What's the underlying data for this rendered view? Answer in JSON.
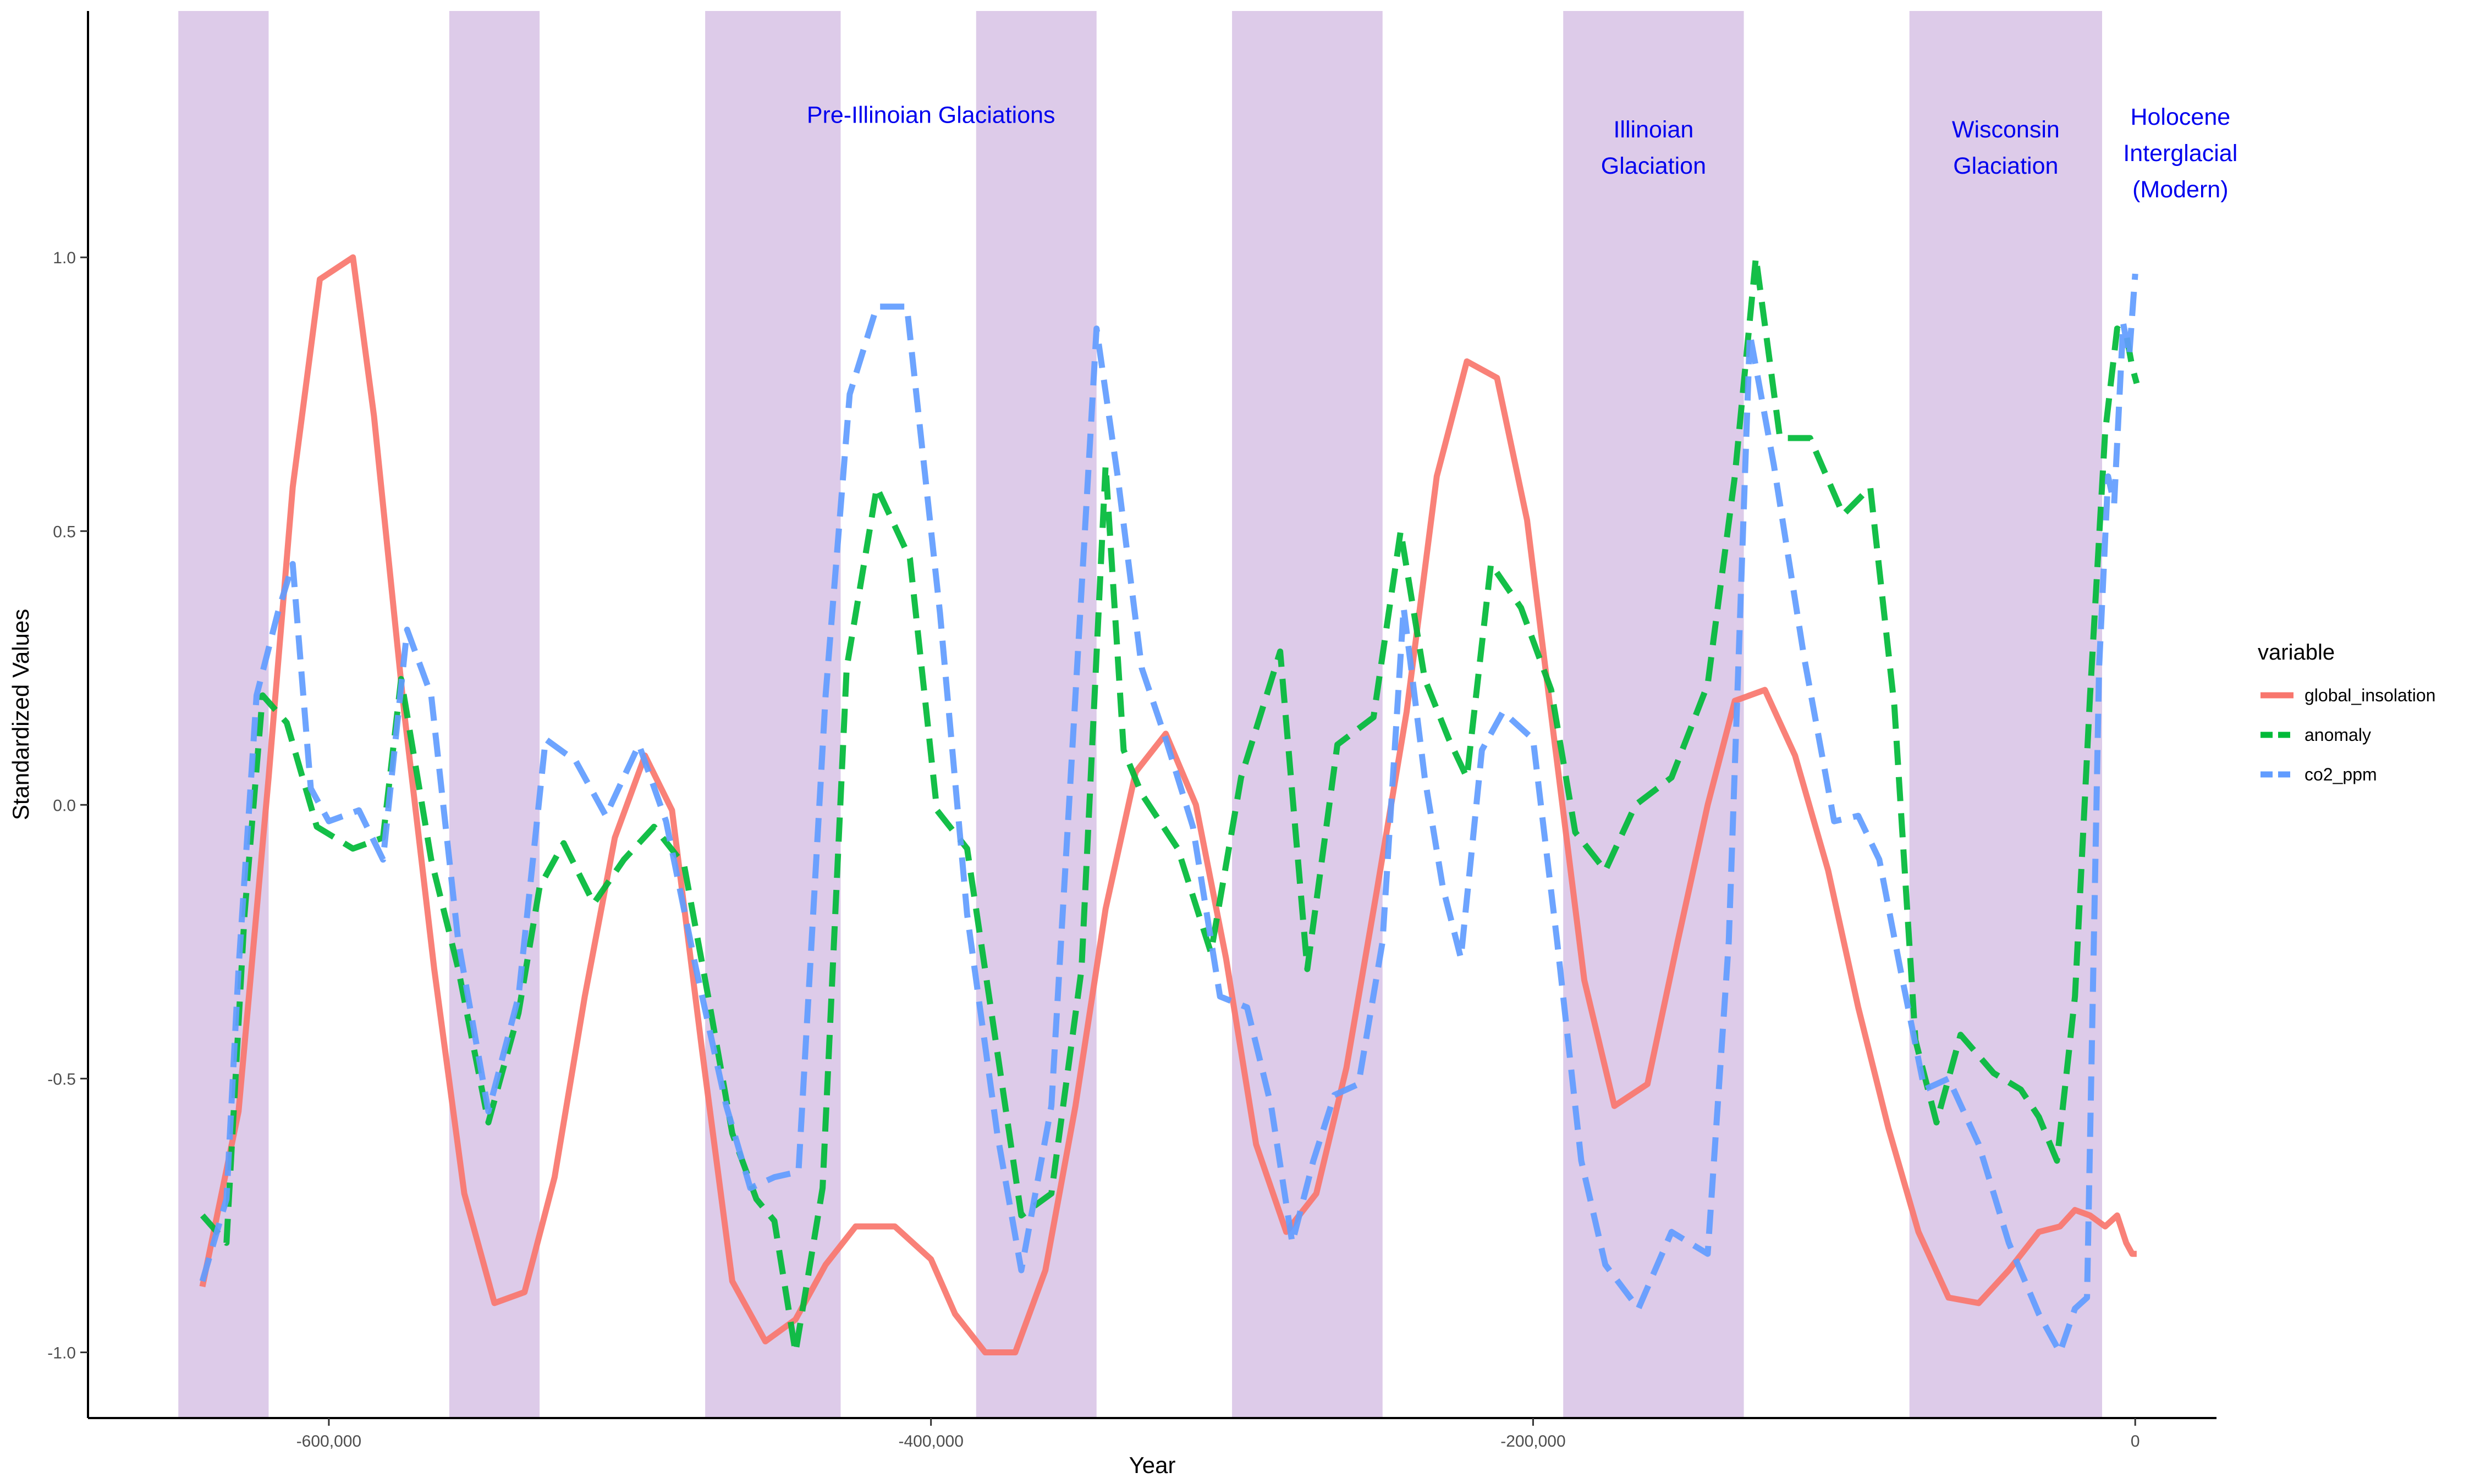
{
  "chart_data": {
    "type": "line",
    "xlabel": "Year",
    "ylabel": "Standardized Values",
    "xlim": [
      -680000,
      27000
    ],
    "ylim": [
      -1.12,
      1.45
    ],
    "x_ticks": [
      -600000,
      -400000,
      -200000,
      0
    ],
    "x_tick_labels": [
      "-600,000",
      "-400,000",
      "-200,000",
      "0"
    ],
    "y_ticks": [
      -1.0,
      -0.5,
      0.0,
      0.5,
      1.0
    ],
    "y_tick_labels": [
      "-1.0",
      "-0.5",
      "0.0",
      "0.5",
      "1.0"
    ],
    "grid": false,
    "legend": {
      "title": "variable",
      "position": "right",
      "entries": [
        "global_insolation",
        "anomaly",
        "co2_ppm"
      ]
    },
    "shaded_periods": [
      {
        "start": -650000,
        "end": -620000
      },
      {
        "start": -560000,
        "end": -530000
      },
      {
        "start": -475000,
        "end": -430000
      },
      {
        "start": -385000,
        "end": -345000
      },
      {
        "start": -300000,
        "end": -250000
      },
      {
        "start": -190000,
        "end": -130000
      },
      {
        "start": -75000,
        "end": -11000
      }
    ],
    "shade_color": "#ddcbe9",
    "annotations": [
      {
        "lines": [
          "Pre-Illinoian Glaciations"
        ],
        "x": -400000,
        "y": 1.26
      },
      {
        "lines": [
          "Illinoian",
          "Glaciation"
        ],
        "x": -160000,
        "y": 1.2
      },
      {
        "lines": [
          "Wisconsin",
          "Glaciation"
        ],
        "x": -43000,
        "y": 1.2
      },
      {
        "lines": [
          "Holocene",
          "Interglacial",
          "(Modern)"
        ],
        "x": 15000,
        "y": 1.19
      }
    ],
    "annotation_color": "#0000ee",
    "series": [
      {
        "name": "global_insolation",
        "color": "#f8766d",
        "dash": "solid",
        "points": [
          [
            -642000,
            -0.88
          ],
          [
            -630000,
            -0.56
          ],
          [
            -620000,
            0.05
          ],
          [
            -612000,
            0.58
          ],
          [
            -603000,
            0.96
          ],
          [
            -592000,
            1.0
          ],
          [
            -585000,
            0.71
          ],
          [
            -575000,
            0.17
          ],
          [
            -565000,
            -0.3
          ],
          [
            -555000,
            -0.71
          ],
          [
            -545000,
            -0.91
          ],
          [
            -535000,
            -0.89
          ],
          [
            -525000,
            -0.68
          ],
          [
            -515000,
            -0.35
          ],
          [
            -505000,
            -0.06
          ],
          [
            -495000,
            0.09
          ],
          [
            -486000,
            -0.01
          ],
          [
            -476000,
            -0.45
          ],
          [
            -466000,
            -0.87
          ],
          [
            -455000,
            -0.98
          ],
          [
            -445000,
            -0.94
          ],
          [
            -435000,
            -0.84
          ],
          [
            -425000,
            -0.77
          ],
          [
            -412000,
            -0.77
          ],
          [
            -400000,
            -0.83
          ],
          [
            -392000,
            -0.93
          ],
          [
            -382000,
            -1.0
          ],
          [
            -372000,
            -1.0
          ],
          [
            -362000,
            -0.85
          ],
          [
            -352000,
            -0.55
          ],
          [
            -342000,
            -0.19
          ],
          [
            -332000,
            0.06
          ],
          [
            -322000,
            0.13
          ],
          [
            -312000,
            0.0
          ],
          [
            -302000,
            -0.28
          ],
          [
            -292000,
            -0.62
          ],
          [
            -282000,
            -0.78
          ],
          [
            -272000,
            -0.71
          ],
          [
            -262000,
            -0.48
          ],
          [
            -252000,
            -0.16
          ],
          [
            -242000,
            0.17
          ],
          [
            -232000,
            0.6
          ],
          [
            -222000,
            0.81
          ],
          [
            -212000,
            0.78
          ],
          [
            -202000,
            0.52
          ],
          [
            -193000,
            0.12
          ],
          [
            -183000,
            -0.32
          ],
          [
            -173000,
            -0.55
          ],
          [
            -162000,
            -0.51
          ],
          [
            -152000,
            -0.25
          ],
          [
            -142000,
            0.0
          ],
          [
            -133000,
            0.19
          ],
          [
            -123000,
            0.21
          ],
          [
            -113000,
            0.09
          ],
          [
            -102000,
            -0.12
          ],
          [
            -92000,
            -0.37
          ],
          [
            -82000,
            -0.59
          ],
          [
            -72000,
            -0.78
          ],
          [
            -62000,
            -0.9
          ],
          [
            -52000,
            -0.91
          ],
          [
            -42000,
            -0.85
          ],
          [
            -32000,
            -0.78
          ],
          [
            -25000,
            -0.77
          ],
          [
            -20000,
            -0.74
          ],
          [
            -15000,
            -0.75
          ],
          [
            -10000,
            -0.77
          ],
          [
            -6000,
            -0.75
          ],
          [
            -3000,
            -0.8
          ],
          [
            -1000,
            -0.82
          ],
          [
            500,
            -0.82
          ]
        ]
      },
      {
        "name": "anomaly",
        "color": "#00ba38",
        "dash": "dashed",
        "points": [
          [
            -642000,
            -0.75
          ],
          [
            -634000,
            -0.8
          ],
          [
            -628000,
            -0.2
          ],
          [
            -622000,
            0.2
          ],
          [
            -614000,
            0.15
          ],
          [
            -604000,
            -0.04
          ],
          [
            -592000,
            -0.08
          ],
          [
            -582000,
            -0.06
          ],
          [
            -576000,
            0.23
          ],
          [
            -566000,
            -0.1
          ],
          [
            -557000,
            -0.3
          ],
          [
            -547000,
            -0.58
          ],
          [
            -537000,
            -0.38
          ],
          [
            -530000,
            -0.15
          ],
          [
            -522000,
            -0.07
          ],
          [
            -512000,
            -0.18
          ],
          [
            -502000,
            -0.1
          ],
          [
            -492000,
            -0.04
          ],
          [
            -482000,
            -0.11
          ],
          [
            -474000,
            -0.35
          ],
          [
            -466000,
            -0.6
          ],
          [
            -458000,
            -0.72
          ],
          [
            -452000,
            -0.76
          ],
          [
            -445000,
            -1.0
          ],
          [
            -436000,
            -0.7
          ],
          [
            -428000,
            0.25
          ],
          [
            -418000,
            0.58
          ],
          [
            -407000,
            0.45
          ],
          [
            -398000,
            -0.01
          ],
          [
            -388000,
            -0.08
          ],
          [
            -378000,
            -0.45
          ],
          [
            -370000,
            -0.75
          ],
          [
            -360000,
            -0.71
          ],
          [
            -350000,
            -0.3
          ],
          [
            -342000,
            0.62
          ],
          [
            -336000,
            0.1
          ],
          [
            -330000,
            0.02
          ],
          [
            -318000,
            -0.08
          ],
          [
            -307000,
            -0.27
          ],
          [
            -297000,
            0.05
          ],
          [
            -284000,
            0.28
          ],
          [
            -275000,
            -0.3
          ],
          [
            -265000,
            0.11
          ],
          [
            -253000,
            0.16
          ],
          [
            -244000,
            0.5
          ],
          [
            -236000,
            0.23
          ],
          [
            -228000,
            0.12
          ],
          [
            -222000,
            0.05
          ],
          [
            -214000,
            0.44
          ],
          [
            -204000,
            0.36
          ],
          [
            -194000,
            0.21
          ],
          [
            -186000,
            -0.05
          ],
          [
            -176000,
            -0.12
          ],
          [
            -166000,
            0.0
          ],
          [
            -154000,
            0.05
          ],
          [
            -142000,
            0.22
          ],
          [
            -133000,
            0.6
          ],
          [
            -126000,
            1.0
          ],
          [
            -118000,
            0.67
          ],
          [
            -108000,
            0.67
          ],
          [
            -97000,
            0.53
          ],
          [
            -88000,
            0.58
          ],
          [
            -80000,
            0.18
          ],
          [
            -73000,
            -0.43
          ],
          [
            -66000,
            -0.58
          ],
          [
            -58000,
            -0.42
          ],
          [
            -47000,
            -0.49
          ],
          [
            -38000,
            -0.52
          ],
          [
            -32000,
            -0.57
          ],
          [
            -26000,
            -0.65
          ],
          [
            -20000,
            -0.35
          ],
          [
            -15000,
            0.2
          ],
          [
            -10000,
            0.68
          ],
          [
            -6000,
            0.87
          ],
          [
            -3000,
            0.86
          ],
          [
            -1000,
            0.8
          ],
          [
            500,
            0.77
          ]
        ]
      },
      {
        "name": "co2_ppm",
        "color": "#619cff",
        "dash": "dashed",
        "points": [
          [
            -642000,
            -0.87
          ],
          [
            -634000,
            -0.72
          ],
          [
            -630000,
            -0.3
          ],
          [
            -624000,
            0.2
          ],
          [
            -617000,
            0.35
          ],
          [
            -612000,
            0.44
          ],
          [
            -606000,
            0.03
          ],
          [
            -600000,
            -0.03
          ],
          [
            -590000,
            -0.01
          ],
          [
            -582000,
            -0.1
          ],
          [
            -574000,
            0.32
          ],
          [
            -566000,
            0.2
          ],
          [
            -557000,
            -0.25
          ],
          [
            -547000,
            -0.56
          ],
          [
            -537000,
            -0.35
          ],
          [
            -528000,
            0.12
          ],
          [
            -518000,
            0.08
          ],
          [
            -508000,
            -0.02
          ],
          [
            -497000,
            0.11
          ],
          [
            -488000,
            -0.03
          ],
          [
            -478000,
            -0.3
          ],
          [
            -468000,
            -0.55
          ],
          [
            -460000,
            -0.7
          ],
          [
            -452000,
            -0.68
          ],
          [
            -444000,
            -0.67
          ],
          [
            -435000,
            0.2
          ],
          [
            -427000,
            0.75
          ],
          [
            -418000,
            0.91
          ],
          [
            -408000,
            0.91
          ],
          [
            -397000,
            0.35
          ],
          [
            -388000,
            -0.2
          ],
          [
            -378000,
            -0.6
          ],
          [
            -370000,
            -0.85
          ],
          [
            -360000,
            -0.55
          ],
          [
            -352000,
            0.2
          ],
          [
            -345000,
            0.87
          ],
          [
            -338000,
            0.6
          ],
          [
            -330000,
            0.25
          ],
          [
            -322000,
            0.12
          ],
          [
            -313000,
            -0.04
          ],
          [
            -304000,
            -0.35
          ],
          [
            -295000,
            -0.37
          ],
          [
            -287000,
            -0.55
          ],
          [
            -280000,
            -0.8
          ],
          [
            -273000,
            -0.65
          ],
          [
            -266000,
            -0.53
          ],
          [
            -258000,
            -0.51
          ],
          [
            -250000,
            -0.25
          ],
          [
            -243000,
            0.36
          ],
          [
            -236000,
            0.05
          ],
          [
            -230000,
            -0.15
          ],
          [
            -224000,
            -0.28
          ],
          [
            -217000,
            0.1
          ],
          [
            -210000,
            0.17
          ],
          [
            -200000,
            0.12
          ],
          [
            -192000,
            -0.25
          ],
          [
            -184000,
            -0.65
          ],
          [
            -176000,
            -0.84
          ],
          [
            -165000,
            -0.92
          ],
          [
            -154000,
            -0.78
          ],
          [
            -142000,
            -0.82
          ],
          [
            -135000,
            -0.25
          ],
          [
            -128000,
            0.86
          ],
          [
            -120000,
            0.62
          ],
          [
            -110000,
            0.27
          ],
          [
            -100000,
            -0.03
          ],
          [
            -92000,
            -0.02
          ],
          [
            -85000,
            -0.1
          ],
          [
            -78000,
            -0.3
          ],
          [
            -70000,
            -0.52
          ],
          [
            -62000,
            -0.5
          ],
          [
            -52000,
            -0.62
          ],
          [
            -42000,
            -0.8
          ],
          [
            -32000,
            -0.93
          ],
          [
            -25000,
            -1.0
          ],
          [
            -20000,
            -0.92
          ],
          [
            -16000,
            -0.9
          ],
          [
            -12000,
            0.25
          ],
          [
            -9000,
            0.6
          ],
          [
            -7000,
            0.55
          ],
          [
            -4000,
            0.88
          ],
          [
            -2000,
            0.82
          ],
          [
            0,
            0.97
          ]
        ]
      }
    ]
  }
}
